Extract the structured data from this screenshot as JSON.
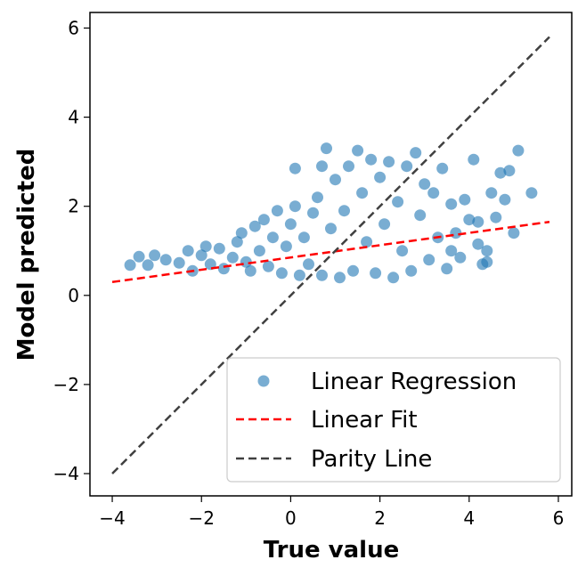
{
  "chart_data": {
    "type": "scatter",
    "xlabel": "True value",
    "ylabel": "Model predicted",
    "xlim": [
      -4.5,
      6.3
    ],
    "ylim": [
      -4.5,
      6.35
    ],
    "xticks": [
      -4,
      -2,
      0,
      2,
      4,
      6
    ],
    "yticks": [
      -4,
      -2,
      0,
      2,
      4,
      6
    ],
    "xtick_labels": [
      "−4",
      "−2",
      "0",
      "2",
      "4",
      "6"
    ],
    "ytick_labels": [
      "−4",
      "−2",
      "0",
      "2",
      "4",
      "6"
    ],
    "grid": false,
    "legend": {
      "placement": "lower-right",
      "entries": [
        "Linear Regression",
        "Linear Fit",
        "Parity Line"
      ]
    },
    "series": [
      {
        "name": "Linear Regression",
        "kind": "scatter",
        "color": "#1f77b4",
        "opacity": 0.6,
        "points": [
          [
            -3.6,
            0.68
          ],
          [
            -3.4,
            0.87
          ],
          [
            -3.2,
            0.68
          ],
          [
            -3.05,
            0.9
          ],
          [
            -2.8,
            0.8
          ],
          [
            -2.5,
            0.73
          ],
          [
            -2.3,
            1.0
          ],
          [
            -2.2,
            0.55
          ],
          [
            -2.0,
            0.9
          ],
          [
            -1.9,
            1.1
          ],
          [
            -1.8,
            0.7
          ],
          [
            -1.6,
            1.05
          ],
          [
            -1.5,
            0.6
          ],
          [
            -1.3,
            0.85
          ],
          [
            -1.2,
            1.2
          ],
          [
            -1.0,
            0.75
          ],
          [
            -1.1,
            1.4
          ],
          [
            -0.9,
            0.55
          ],
          [
            -0.8,
            1.55
          ],
          [
            -0.7,
            1.0
          ],
          [
            -0.6,
            1.7
          ],
          [
            -0.5,
            0.65
          ],
          [
            -0.4,
            1.3
          ],
          [
            -0.3,
            1.9
          ],
          [
            -0.2,
            0.5
          ],
          [
            -0.1,
            1.1
          ],
          [
            0.0,
            1.6
          ],
          [
            0.1,
            2.0
          ],
          [
            0.1,
            2.85
          ],
          [
            0.2,
            0.45
          ],
          [
            0.3,
            1.3
          ],
          [
            0.4,
            0.7
          ],
          [
            0.5,
            1.85
          ],
          [
            0.6,
            2.2
          ],
          [
            0.7,
            2.9
          ],
          [
            0.7,
            0.45
          ],
          [
            0.8,
            3.3
          ],
          [
            0.9,
            1.5
          ],
          [
            1.0,
            2.6
          ],
          [
            1.1,
            0.4
          ],
          [
            1.2,
            1.9
          ],
          [
            1.3,
            2.9
          ],
          [
            1.4,
            0.55
          ],
          [
            1.5,
            3.25
          ],
          [
            1.6,
            2.3
          ],
          [
            1.7,
            1.2
          ],
          [
            1.8,
            3.05
          ],
          [
            1.9,
            0.5
          ],
          [
            2.0,
            2.65
          ],
          [
            2.1,
            1.6
          ],
          [
            2.2,
            3.0
          ],
          [
            2.3,
            0.4
          ],
          [
            2.4,
            2.1
          ],
          [
            2.5,
            1.0
          ],
          [
            2.6,
            2.9
          ],
          [
            2.7,
            0.55
          ],
          [
            2.8,
            3.2
          ],
          [
            2.9,
            1.8
          ],
          [
            3.0,
            2.5
          ],
          [
            3.1,
            0.8
          ],
          [
            3.2,
            2.3
          ],
          [
            3.3,
            1.3
          ],
          [
            3.4,
            2.85
          ],
          [
            3.5,
            0.6
          ],
          [
            3.6,
            2.05
          ],
          [
            3.7,
            1.4
          ],
          [
            3.8,
            0.85
          ],
          [
            3.9,
            2.15
          ],
          [
            4.0,
            1.7
          ],
          [
            4.1,
            3.05
          ],
          [
            4.2,
            1.15
          ],
          [
            4.3,
            0.7
          ],
          [
            4.4,
            1.0
          ],
          [
            4.5,
            2.3
          ],
          [
            4.6,
            1.75
          ],
          [
            4.7,
            2.75
          ],
          [
            4.8,
            2.15
          ],
          [
            4.9,
            2.8
          ],
          [
            5.0,
            1.4
          ],
          [
            5.1,
            3.25
          ],
          [
            5.4,
            2.3
          ],
          [
            4.4,
            0.75
          ],
          [
            4.2,
            1.65
          ],
          [
            3.6,
            1.0
          ]
        ]
      },
      {
        "name": "Linear Fit",
        "kind": "line",
        "style": "dashed",
        "color": "#ff0000",
        "x": [
          -4.0,
          5.8
        ],
        "y": [
          0.3,
          1.65
        ]
      },
      {
        "name": "Parity Line",
        "kind": "line",
        "style": "dashed",
        "color": "#404040",
        "x": [
          -4.0,
          5.8
        ],
        "y": [
          -4.0,
          5.8
        ]
      }
    ]
  }
}
